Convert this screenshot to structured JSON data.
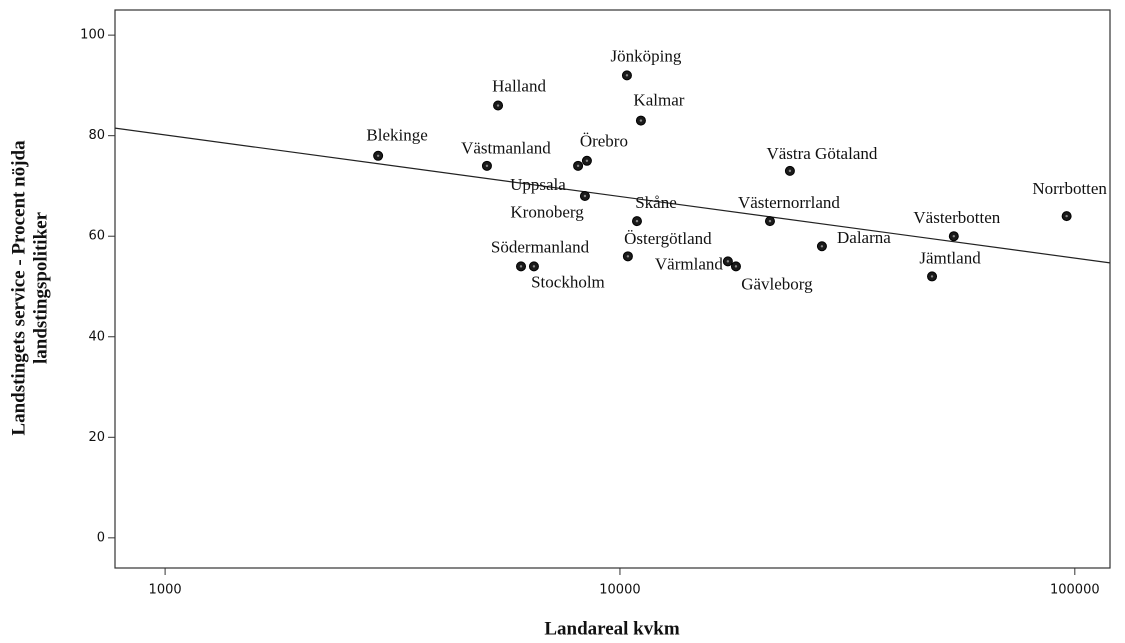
{
  "chart_data": {
    "type": "scatter",
    "xlabel": "Landareal kvkm",
    "ylabel": [
      "Landstingets service - Procent nöjda",
      "landstingspolitiker"
    ],
    "labels": [
      "Blekinge",
      "Halland",
      "Jönköping",
      "Kalmar",
      "Västmanland",
      "Kronoberg",
      "Örebro",
      "Uppsala",
      "Skåne",
      "Västernorrland",
      "Västra Götaland",
      "Norrbotten",
      "Västerbotten",
      "Dalarna",
      "Östergötland",
      "Södermanland",
      "Stockholm",
      "Värmland",
      "Gävleborg",
      "Jämtland"
    ],
    "x": [
      2940,
      5395,
      10360,
      11120,
      5100,
      8090,
      8460,
      8375,
      10900,
      21370,
      23640,
      95950,
      54200,
      27800,
      10410,
      6060,
      6470,
      17270,
      17990,
      48540
    ],
    "y": [
      76,
      86,
      92,
      83,
      74,
      74,
      75,
      68,
      63,
      63,
      73,
      64,
      60,
      58,
      56,
      54,
      54,
      55,
      54,
      52
    ],
    "color": "#1a1a1a",
    "trendline": {
      "x": [
        776,
        119500
      ],
      "y": [
        81.5,
        54.7
      ]
    },
    "xscale": "log",
    "xlim": [
      776,
      119500
    ],
    "xticks": [
      1000,
      10000,
      100000
    ],
    "ylim": [
      -6,
      105
    ],
    "yticks": [
      0,
      20,
      40,
      60,
      80,
      100
    ]
  }
}
